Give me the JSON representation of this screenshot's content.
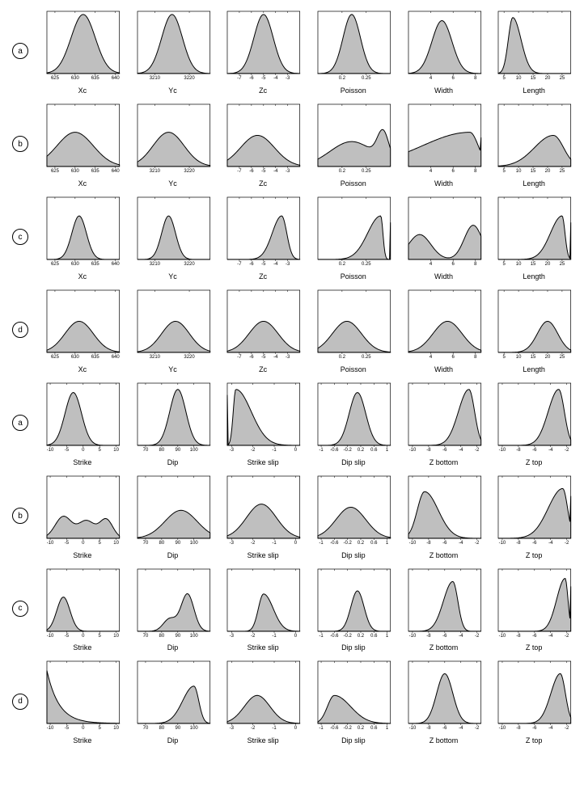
{
  "style": {
    "fill": "#bfbfbf",
    "stroke": "#000000",
    "stroke_width": 1,
    "axis_color": "#000000",
    "tick_fontsize": 6,
    "label_fontsize": 9,
    "bg": "#ffffff"
  },
  "row_labels": [
    "a",
    "b",
    "c",
    "d",
    "a",
    "b",
    "c",
    "d"
  ],
  "rows": [
    {
      "label": "a",
      "plots": [
        {
          "xlabel": "Xc",
          "xmin": 623,
          "xmax": 641,
          "ticks": [
            625,
            630,
            635,
            640
          ],
          "peak_center": 632,
          "peak_height": 0.95,
          "width": 3,
          "shape": "gauss",
          "skew": 0
        },
        {
          "xlabel": "Yc",
          "xmin": 3205,
          "xmax": 3226,
          "ticks": [
            3210,
            3220
          ],
          "peak_center": 3215,
          "peak_height": 0.95,
          "width": 3,
          "shape": "gauss",
          "skew": 0
        },
        {
          "xlabel": "Zc",
          "xmin": -8,
          "xmax": -2,
          "ticks": [
            -7,
            -6,
            -5,
            -4,
            -3
          ],
          "peak_center": -5,
          "peak_height": 0.95,
          "width": 0.8,
          "shape": "gauss",
          "skew": 0
        },
        {
          "xlabel": "Poisson",
          "xmin": 0.15,
          "xmax": 0.3,
          "ticks": [
            0.2,
            0.25
          ],
          "peak_center": 0.22,
          "peak_height": 0.95,
          "width": 0.018,
          "shape": "gauss",
          "skew": 0
        },
        {
          "xlabel": "Width",
          "xmin": 2,
          "xmax": 8.5,
          "ticks": [
            4,
            6,
            8
          ],
          "peak_center": 5,
          "peak_height": 0.85,
          "width": 0.9,
          "shape": "gauss",
          "skew": 0
        },
        {
          "xlabel": "Length",
          "xmin": 3,
          "xmax": 28,
          "ticks": [
            5,
            10,
            15,
            20,
            25
          ],
          "peak_center": 8,
          "peak_height": 0.9,
          "width": 2.2,
          "shape": "gauss",
          "skew": 0.3
        }
      ]
    },
    {
      "label": "b",
      "plots": [
        {
          "xlabel": "Xc",
          "xmin": 623,
          "xmax": 641,
          "ticks": [
            625,
            630,
            635,
            640
          ],
          "peak_center": 630,
          "peak_height": 0.55,
          "width": 4.5,
          "shape": "gauss",
          "skew": 0
        },
        {
          "xlabel": "Yc",
          "xmin": 3205,
          "xmax": 3226,
          "ticks": [
            3210,
            3220
          ],
          "peak_center": 3214,
          "peak_height": 0.55,
          "width": 4.5,
          "shape": "gauss",
          "skew": 0
        },
        {
          "xlabel": "Zc",
          "xmin": -8,
          "xmax": -2,
          "ticks": [
            -7,
            -6,
            -5,
            -4,
            -3
          ],
          "peak_center": -5.5,
          "peak_height": 0.5,
          "width": 1.4,
          "shape": "gauss",
          "skew": 0
        },
        {
          "xlabel": "Poisson",
          "xmin": 0.15,
          "xmax": 0.3,
          "ticks": [
            0.2,
            0.25
          ],
          "peak_center": 0.22,
          "peak_height": 0.4,
          "width": 0.045,
          "shape": "bimodal",
          "skew": 0,
          "secondary_center": 0.285,
          "secondary_height": 0.45,
          "secondary_width": 0.012
        },
        {
          "xlabel": "Width",
          "xmin": 2,
          "xmax": 8.5,
          "ticks": [
            4,
            6,
            8
          ],
          "peak_center": 7.5,
          "peak_height": 0.55,
          "width": 2.5,
          "shape": "gauss",
          "skew": -0.7,
          "edge_high": true
        },
        {
          "xlabel": "Length",
          "xmin": 3,
          "xmax": 28,
          "ticks": [
            5,
            10,
            15,
            20,
            25
          ],
          "peak_center": 22,
          "peak_height": 0.5,
          "width": 5,
          "shape": "gauss",
          "skew": -0.3
        }
      ]
    },
    {
      "label": "c",
      "plots": [
        {
          "xlabel": "Xc",
          "xmin": 623,
          "xmax": 641,
          "ticks": [
            625,
            630,
            635,
            640
          ],
          "peak_center": 631,
          "peak_height": 0.7,
          "width": 1.8,
          "shape": "gauss",
          "skew": 0
        },
        {
          "xlabel": "Yc",
          "xmin": 3205,
          "xmax": 3226,
          "ticks": [
            3210,
            3220
          ],
          "peak_center": 3214,
          "peak_height": 0.7,
          "width": 2,
          "shape": "gauss",
          "skew": 0
        },
        {
          "xlabel": "Zc",
          "xmin": -8,
          "xmax": -2,
          "ticks": [
            -7,
            -6,
            -5,
            -4,
            -3
          ],
          "peak_center": -3.5,
          "peak_height": 0.7,
          "width": 0.6,
          "shape": "gauss",
          "skew": -0.3
        },
        {
          "xlabel": "Poisson",
          "xmin": 0.15,
          "xmax": 0.3,
          "ticks": [
            0.2,
            0.25
          ],
          "peak_center": 0.28,
          "peak_height": 0.7,
          "width": 0.015,
          "shape": "gauss",
          "skew": -0.8,
          "edge_high": true
        },
        {
          "xlabel": "Width",
          "xmin": 2,
          "xmax": 8.5,
          "ticks": [
            4,
            6,
            8
          ],
          "peak_center": 3,
          "peak_height": 0.4,
          "width": 1,
          "shape": "bimodal",
          "skew": 0,
          "secondary_center": 7.8,
          "secondary_height": 0.55,
          "secondary_width": 0.8,
          "edge_high": true
        },
        {
          "xlabel": "Length",
          "xmin": 3,
          "xmax": 28,
          "ticks": [
            5,
            10,
            15,
            20,
            25
          ],
          "peak_center": 25,
          "peak_height": 0.7,
          "width": 2.5,
          "shape": "gauss",
          "skew": -0.6,
          "edge_high": true
        }
      ]
    },
    {
      "label": "d",
      "plots": [
        {
          "xlabel": "Xc",
          "xmin": 623,
          "xmax": 641,
          "ticks": [
            625,
            630,
            635,
            640
          ],
          "peak_center": 631,
          "peak_height": 0.5,
          "width": 3.5,
          "shape": "gauss",
          "skew": 0
        },
        {
          "xlabel": "Yc",
          "xmin": 3205,
          "xmax": 3226,
          "ticks": [
            3210,
            3220
          ],
          "peak_center": 3216,
          "peak_height": 0.5,
          "width": 4,
          "shape": "gauss",
          "skew": 0
        },
        {
          "xlabel": "Zc",
          "xmin": -8,
          "xmax": -2,
          "ticks": [
            -7,
            -6,
            -5,
            -4,
            -3
          ],
          "peak_center": -5,
          "peak_height": 0.5,
          "width": 1.2,
          "shape": "gauss",
          "skew": 0
        },
        {
          "xlabel": "Poisson",
          "xmin": 0.15,
          "xmax": 0.3,
          "ticks": [
            0.2,
            0.25
          ],
          "peak_center": 0.21,
          "peak_height": 0.5,
          "width": 0.03,
          "shape": "gauss",
          "skew": 0
        },
        {
          "xlabel": "Width",
          "xmin": 2,
          "xmax": 8.5,
          "ticks": [
            4,
            6,
            8
          ],
          "peak_center": 5.5,
          "peak_height": 0.5,
          "width": 1.3,
          "shape": "gauss",
          "skew": 0
        },
        {
          "xlabel": "Length",
          "xmin": 3,
          "xmax": 28,
          "ticks": [
            5,
            10,
            15,
            20,
            25
          ],
          "peak_center": 20,
          "peak_height": 0.5,
          "width": 3.5,
          "shape": "gauss",
          "skew": 0
        }
      ]
    },
    {
      "label": "a",
      "plots": [
        {
          "xlabel": "Strike",
          "xmin": -11,
          "xmax": 11,
          "ticks": [
            -10,
            -5,
            0,
            5,
            10
          ],
          "peak_center": -3,
          "peak_height": 0.85,
          "width": 2.5,
          "shape": "gauss",
          "skew": 0
        },
        {
          "xlabel": "Dip",
          "xmin": 65,
          "xmax": 110,
          "ticks": [
            70,
            80,
            90,
            100
          ],
          "peak_center": 90,
          "peak_height": 0.9,
          "width": 5,
          "shape": "gauss",
          "skew": 0
        },
        {
          "xlabel": "Strike slip",
          "xmin": -3.2,
          "xmax": 0.2,
          "ticks": [
            -3,
            -2,
            -1,
            0
          ],
          "peak_center": -2.8,
          "peak_height": 0.9,
          "width": 0.4,
          "shape": "gauss",
          "skew": 0.8,
          "edge_low": true
        },
        {
          "xlabel": "Dip slip",
          "xmin": -1.1,
          "xmax": 1.1,
          "ticks": [
            -1,
            -0.6,
            -0.2,
            0.2,
            0.6,
            1
          ],
          "peak_center": 0.1,
          "peak_height": 0.85,
          "width": 0.25,
          "shape": "gauss",
          "skew": 0
        },
        {
          "xlabel": "Z bottom",
          "xmin": -10.5,
          "xmax": -1.5,
          "ticks": [
            -10,
            -8,
            -6,
            -4,
            -2
          ],
          "peak_center": -3,
          "peak_height": 0.9,
          "width": 1,
          "shape": "gauss",
          "skew": -0.3
        },
        {
          "xlabel": "Z top",
          "xmin": -10.5,
          "xmax": -1.5,
          "ticks": [
            -10,
            -8,
            -6,
            -4,
            -2
          ],
          "peak_center": -3,
          "peak_height": 0.9,
          "width": 1,
          "shape": "gauss",
          "skew": -0.3
        }
      ]
    },
    {
      "label": "b",
      "plots": [
        {
          "xlabel": "Strike",
          "xmin": -11,
          "xmax": 11,
          "ticks": [
            -10,
            -5,
            0,
            5,
            10
          ],
          "peak_center": -6,
          "peak_height": 0.35,
          "width": 3,
          "shape": "multimodal",
          "skew": 0,
          "peaks": [
            {
              "c": -6,
              "h": 0.35,
              "w": 2.5
            },
            {
              "c": 1,
              "h": 0.28,
              "w": 2.5
            },
            {
              "c": 7,
              "h": 0.3,
              "w": 2
            }
          ]
        },
        {
          "xlabel": "Dip",
          "xmin": 65,
          "xmax": 110,
          "ticks": [
            70,
            80,
            90,
            100
          ],
          "peak_center": 92,
          "peak_height": 0.45,
          "width": 10,
          "shape": "gauss",
          "skew": 0
        },
        {
          "xlabel": "Strike slip",
          "xmin": -3.2,
          "xmax": 0.2,
          "ticks": [
            -3,
            -2,
            -1,
            0
          ],
          "peak_center": -1.6,
          "peak_height": 0.55,
          "width": 0.7,
          "shape": "gauss",
          "skew": 0
        },
        {
          "xlabel": "Dip slip",
          "xmin": -1.1,
          "xmax": 1.1,
          "ticks": [
            -1,
            -0.6,
            -0.2,
            0.2,
            0.6,
            1
          ],
          "peak_center": -0.1,
          "peak_height": 0.5,
          "width": 0.45,
          "shape": "gauss",
          "skew": 0
        },
        {
          "xlabel": "Z bottom",
          "xmin": -10.5,
          "xmax": -1.5,
          "ticks": [
            -10,
            -8,
            -6,
            -4,
            -2
          ],
          "peak_center": -8.5,
          "peak_height": 0.75,
          "width": 1.3,
          "shape": "gauss",
          "skew": 0.3
        },
        {
          "xlabel": "Z top",
          "xmin": -10.5,
          "xmax": -1.5,
          "ticks": [
            -10,
            -8,
            -6,
            -4,
            -2
          ],
          "peak_center": -2.5,
          "peak_height": 0.8,
          "width": 1.2,
          "shape": "gauss",
          "skew": -0.5,
          "edge_high": true
        }
      ]
    },
    {
      "label": "c",
      "plots": [
        {
          "xlabel": "Strike",
          "xmin": -11,
          "xmax": 11,
          "ticks": [
            -10,
            -5,
            0,
            5,
            10
          ],
          "peak_center": -6,
          "peak_height": 0.55,
          "width": 2,
          "shape": "gauss",
          "skew": 0
        },
        {
          "xlabel": "Dip",
          "xmin": 65,
          "xmax": 110,
          "ticks": [
            70,
            80,
            90,
            100
          ],
          "peak_center": 96,
          "peak_height": 0.6,
          "width": 4,
          "shape": "bimodal",
          "skew": 0,
          "secondary_center": 85,
          "secondary_height": 0.2,
          "secondary_width": 4
        },
        {
          "xlabel": "Strike slip",
          "xmin": -3.2,
          "xmax": 0.2,
          "ticks": [
            -3,
            -2,
            -1,
            0
          ],
          "peak_center": -1.5,
          "peak_height": 0.6,
          "width": 0.35,
          "shape": "gauss",
          "skew": 0.3
        },
        {
          "xlabel": "Dip slip",
          "xmin": -1.1,
          "xmax": 1.1,
          "ticks": [
            -1,
            -0.6,
            -0.2,
            0.2,
            0.6,
            1
          ],
          "peak_center": 0.1,
          "peak_height": 0.65,
          "width": 0.2,
          "shape": "gauss",
          "skew": 0
        },
        {
          "xlabel": "Z bottom",
          "xmin": -10.5,
          "xmax": -1.5,
          "ticks": [
            -10,
            -8,
            -6,
            -4,
            -2
          ],
          "peak_center": -5,
          "peak_height": 0.8,
          "width": 0.9,
          "shape": "gauss",
          "skew": -0.3
        },
        {
          "xlabel": "Z top",
          "xmin": -10.5,
          "xmax": -1.5,
          "ticks": [
            -10,
            -8,
            -6,
            -4,
            -2
          ],
          "peak_center": -2.2,
          "peak_height": 0.85,
          "width": 0.7,
          "shape": "gauss",
          "skew": -0.5,
          "edge_high": true
        }
      ]
    },
    {
      "label": "d",
      "plots": [
        {
          "xlabel": "Strike",
          "xmin": -11,
          "xmax": 11,
          "ticks": [
            -10,
            -5,
            0,
            5,
            10
          ],
          "peak_center": -10,
          "peak_height": 0.85,
          "width": 1.5,
          "shape": "exp_decay",
          "skew": 0,
          "edge_low": true
        },
        {
          "xlabel": "Dip",
          "xmin": 65,
          "xmax": 110,
          "ticks": [
            70,
            80,
            90,
            100
          ],
          "peak_center": 100,
          "peak_height": 0.6,
          "width": 5,
          "shape": "gauss",
          "skew": -0.4
        },
        {
          "xlabel": "Strike slip",
          "xmin": -3.2,
          "xmax": 0.2,
          "ticks": [
            -3,
            -2,
            -1,
            0
          ],
          "peak_center": -1.8,
          "peak_height": 0.45,
          "width": 0.6,
          "shape": "gauss",
          "skew": 0
        },
        {
          "xlabel": "Dip slip",
          "xmin": -1.1,
          "xmax": 1.1,
          "ticks": [
            -1,
            -0.6,
            -0.2,
            0.2,
            0.6,
            1
          ],
          "peak_center": -0.6,
          "peak_height": 0.45,
          "width": 0.35,
          "shape": "gauss",
          "skew": 0.4
        },
        {
          "xlabel": "Z bottom",
          "xmin": -10.5,
          "xmax": -1.5,
          "ticks": [
            -10,
            -8,
            -6,
            -4,
            -2
          ],
          "peak_center": -6,
          "peak_height": 0.8,
          "width": 1,
          "shape": "gauss",
          "skew": 0
        },
        {
          "xlabel": "Z top",
          "xmin": -10.5,
          "xmax": -1.5,
          "ticks": [
            -10,
            -8,
            -6,
            -4,
            -2
          ],
          "peak_center": -2.8,
          "peak_height": 0.8,
          "width": 0.9,
          "shape": "gauss",
          "skew": -0.3
        }
      ]
    }
  ]
}
